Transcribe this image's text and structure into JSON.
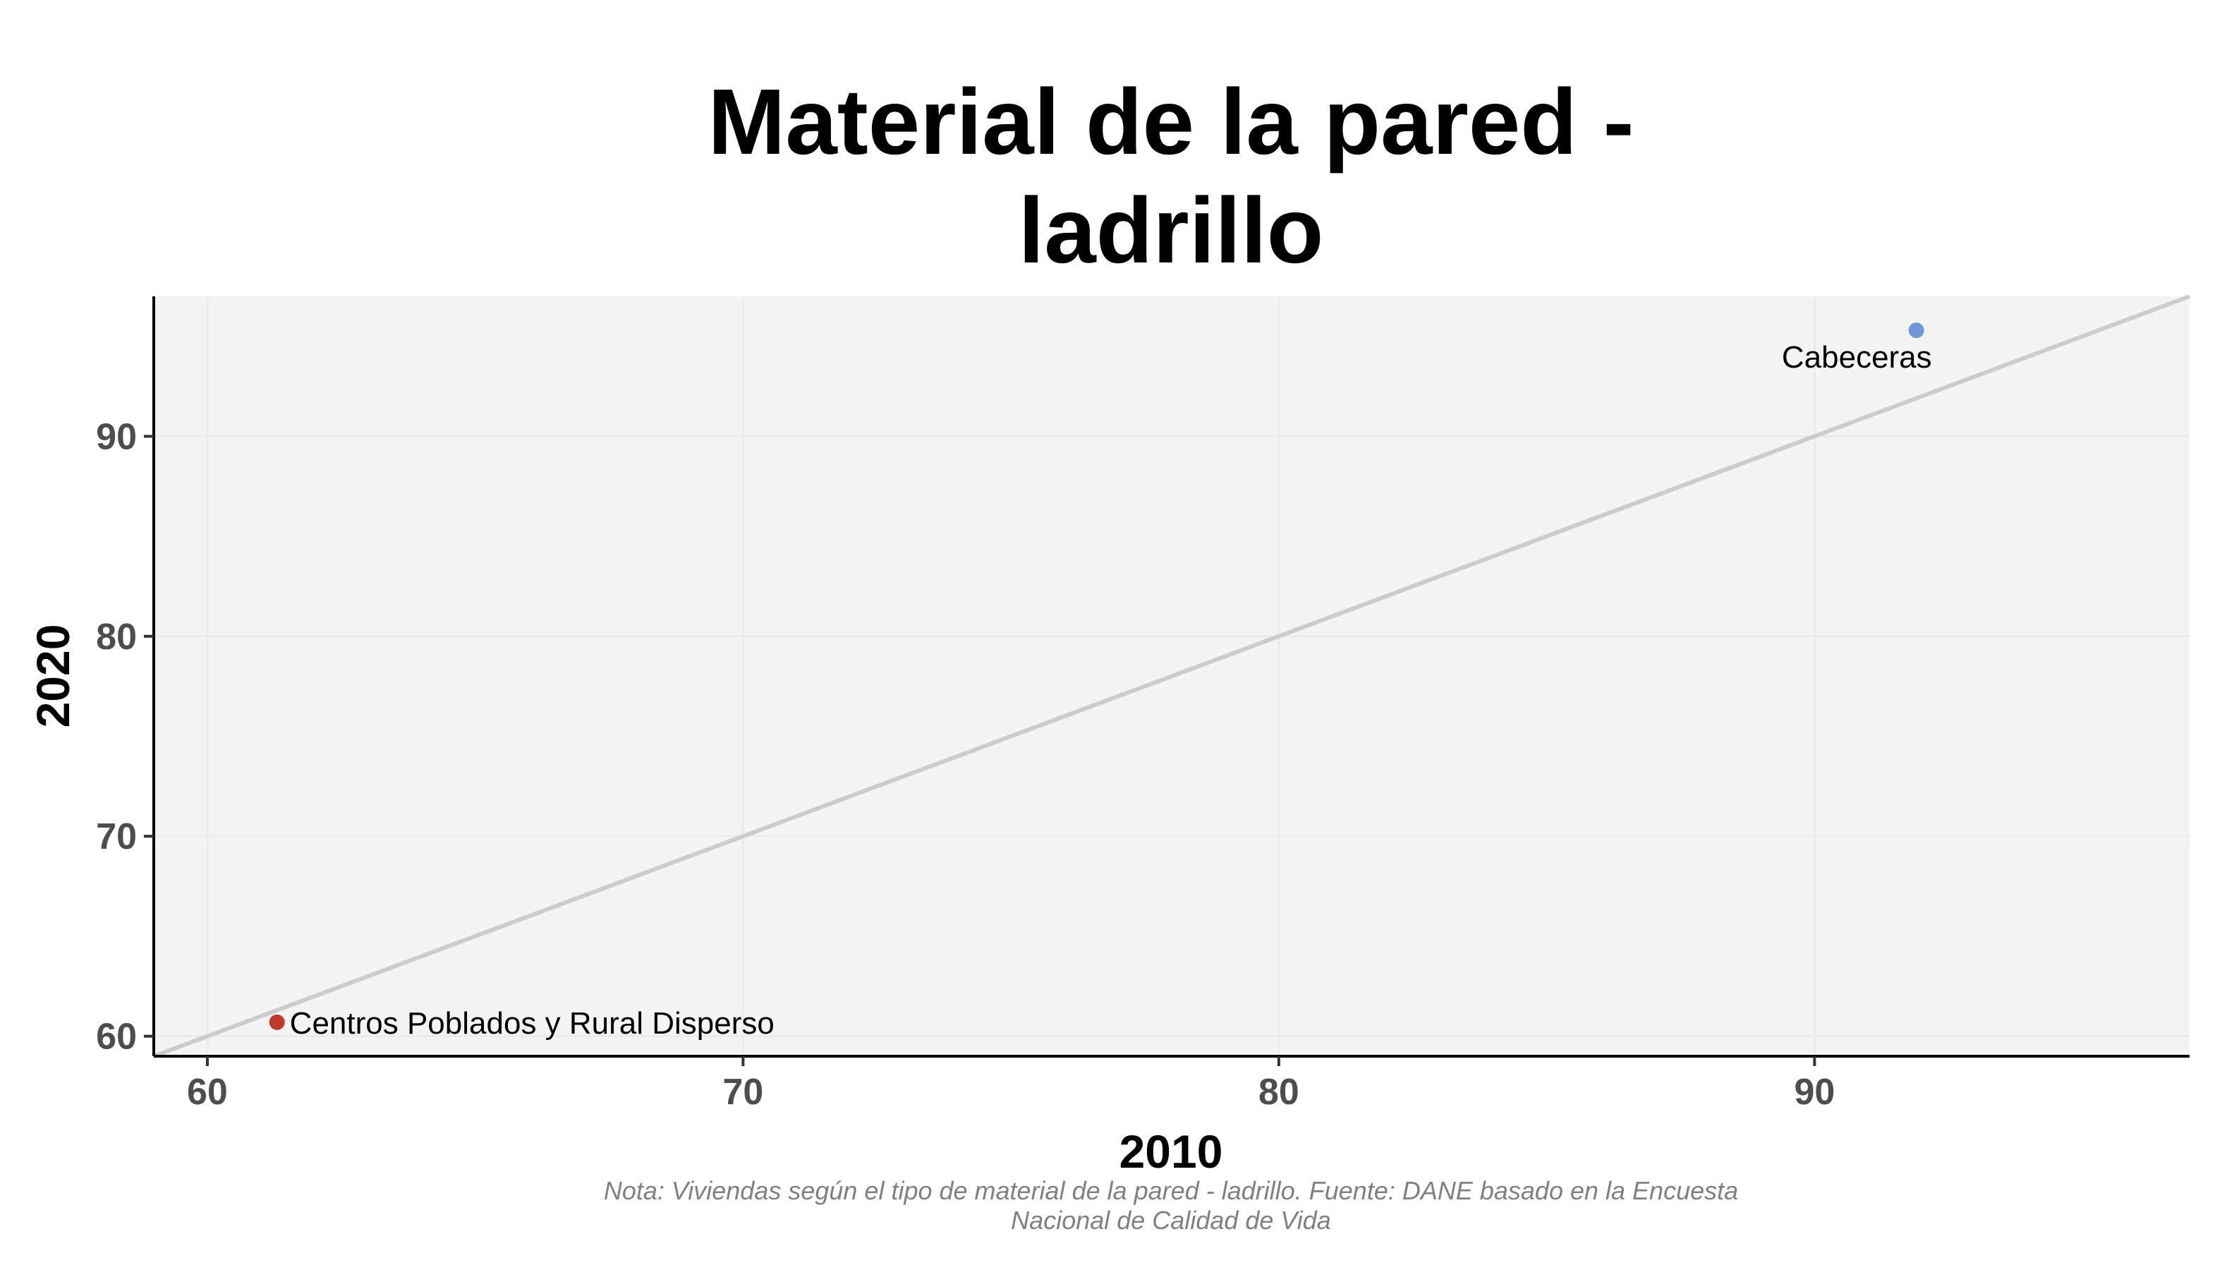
{
  "chart_data": {
    "type": "scatter",
    "title": [
      "Material de la pared -",
      "ladrillo"
    ],
    "xlabel": "2010",
    "ylabel": "2020",
    "xlim": [
      59,
      97
    ],
    "ylim": [
      59,
      97
    ],
    "xticks": [
      60,
      70,
      80,
      90
    ],
    "yticks": [
      60,
      70,
      80,
      90
    ],
    "grid": true,
    "reference_line": {
      "type": "identity",
      "color": "#cccccc"
    },
    "points": [
      {
        "label": "Centros Poblados y Rural Disperso",
        "x": 61.3,
        "y": 60.7,
        "color": "#c0392b"
      },
      {
        "label": "Cabeceras",
        "x": 91.9,
        "y": 95.3,
        "color": "#6f97d6"
      }
    ],
    "caption": [
      "Nota: Viviendas según el tipo de material de la pared - ladrillo. Fuente: DANE basado en la Encuesta",
      "Nacional de Calidad de Vida"
    ],
    "colors": {
      "panel_background": "#f4f4f4",
      "grid": "#ebebeb",
      "axis": "#000000"
    }
  }
}
